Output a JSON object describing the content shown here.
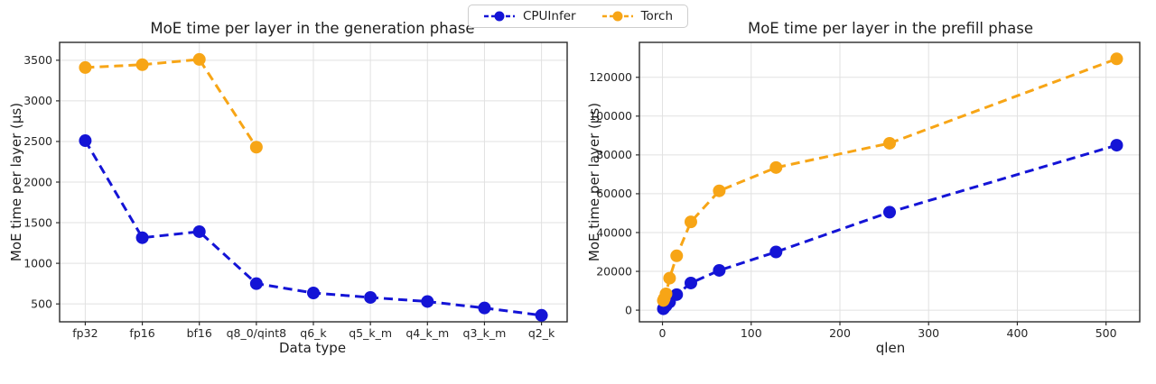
{
  "legend": {
    "items": [
      {
        "label": "CPUInfer",
        "color": "#1414d6"
      },
      {
        "label": "Torch",
        "color": "#f7a516"
      }
    ]
  },
  "chart_data": [
    {
      "type": "line",
      "title": "MoE time per layer in the generation phase",
      "xlabel": "Data type",
      "ylabel": "MoE time per layer (µs)",
      "categories": [
        "fp32",
        "fp16",
        "bf16",
        "q8_0/qint8",
        "q6_k",
        "q5_k_m",
        "q4_k_m",
        "q3_k_m",
        "q2_k"
      ],
      "yticks": [
        500,
        1000,
        1500,
        2000,
        2500,
        3000,
        3500
      ],
      "ylim": [
        280,
        3720
      ],
      "grid": true,
      "line_style": "dashed",
      "legend_position": "figure-top-center",
      "series": [
        {
          "name": "CPUInfer",
          "color": "#1414d6",
          "values": [
            2510,
            1315,
            1390,
            750,
            635,
            580,
            530,
            450,
            360
          ]
        },
        {
          "name": "Torch",
          "color": "#f7a516",
          "values": [
            3410,
            3445,
            3510,
            2430,
            null,
            null,
            null,
            null,
            null
          ]
        }
      ]
    },
    {
      "type": "line",
      "title": "MoE time per layer in the prefill phase",
      "xlabel": "qlen",
      "ylabel": "MoE time per layer (µs)",
      "x": [
        1,
        2,
        4,
        8,
        16,
        32,
        64,
        128,
        256,
        512
      ],
      "xticks": [
        0,
        100,
        200,
        300,
        400,
        500
      ],
      "yticks": [
        0,
        20000,
        40000,
        60000,
        80000,
        100000,
        120000
      ],
      "xlim": [
        -26,
        538
      ],
      "ylim": [
        -6000,
        138000
      ],
      "grid": true,
      "line_style": "dashed",
      "legend_position": "figure-top-center",
      "series": [
        {
          "name": "CPUInfer",
          "color": "#1414d6",
          "values": [
            700,
            1400,
            2300,
            4200,
            8000,
            14000,
            20500,
            30000,
            50500,
            85000
          ]
        },
        {
          "name": "Torch",
          "color": "#f7a516",
          "values": [
            5000,
            6000,
            8400,
            16500,
            28000,
            45500,
            61500,
            73500,
            86000,
            129500
          ]
        }
      ]
    }
  ]
}
